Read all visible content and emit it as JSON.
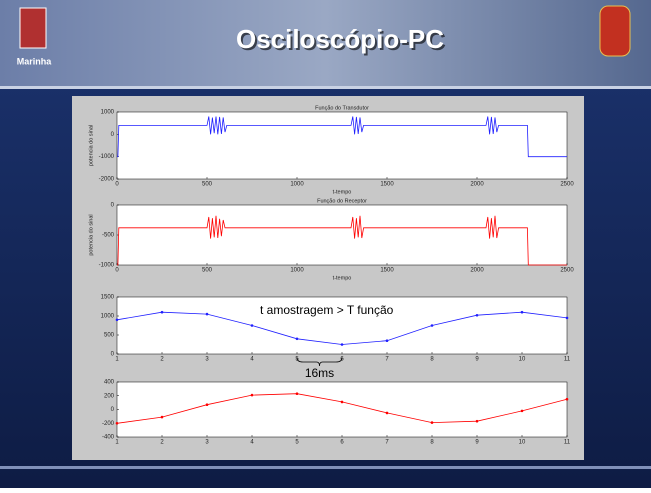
{
  "slide": {
    "title": "Osciloscópio-PC",
    "logo_text": "Marinha"
  },
  "chart_data": [
    {
      "type": "line",
      "title": "Função do Transdutor",
      "ylabel": "potencia do sinal",
      "xlabel": "t-tempo",
      "color": "#2020ff",
      "markers": false,
      "xlim": [
        0,
        2500
      ],
      "ylim": [
        -2000,
        1000
      ],
      "xticks": [
        0,
        500,
        1000,
        1500,
        2000,
        2500
      ],
      "yticks": [
        -2000,
        -1000,
        0,
        1000
      ],
      "x": [
        0,
        5,
        10,
        500,
        510,
        520,
        530,
        540,
        550,
        560,
        570,
        580,
        590,
        600,
        610,
        1300,
        1310,
        1320,
        1330,
        1340,
        1350,
        1360,
        1370,
        2050,
        2060,
        2070,
        2080,
        2090,
        2100,
        2110,
        2120,
        2280,
        2285,
        2500
      ],
      "y": [
        -1000,
        -1000,
        400,
        400,
        800,
        0,
        750,
        50,
        800,
        0,
        780,
        20,
        760,
        100,
        400,
        400,
        800,
        0,
        780,
        20,
        760,
        100,
        400,
        400,
        800,
        0,
        780,
        20,
        760,
        100,
        400,
        400,
        -1000,
        -1000
      ]
    },
    {
      "type": "line",
      "title": "Função do Receptor",
      "ylabel": "potencia do sinal",
      "xlabel": "t-tempo",
      "color": "#ff0000",
      "markers": false,
      "xlim": [
        0,
        2500
      ],
      "ylim": [
        -1000,
        0
      ],
      "xticks": [
        0,
        500,
        1000,
        1500,
        2000,
        2500
      ],
      "yticks": [
        -1000,
        -500,
        0
      ],
      "x": [
        0,
        5,
        10,
        500,
        510,
        520,
        530,
        540,
        550,
        560,
        570,
        580,
        590,
        600,
        610,
        1300,
        1310,
        1320,
        1330,
        1340,
        1350,
        1360,
        1370,
        2050,
        2060,
        2070,
        2080,
        2090,
        2100,
        2110,
        2120,
        2280,
        2285,
        2500
      ],
      "y": [
        -1000,
        -1000,
        -380,
        -380,
        -200,
        -560,
        -220,
        -540,
        -180,
        -550,
        -230,
        -520,
        -250,
        -380,
        -380,
        -380,
        -200,
        -560,
        -220,
        -540,
        -180,
        -550,
        -380,
        -380,
        -200,
        -560,
        -220,
        -540,
        -180,
        -550,
        -380,
        -380,
        -1000,
        -1000
      ]
    },
    {
      "type": "line",
      "color": "#2020ff",
      "markers": true,
      "xlim": [
        1,
        11
      ],
      "ylim": [
        0,
        1500
      ],
      "xticks": [
        1,
        2,
        3,
        4,
        5,
        6,
        7,
        8,
        9,
        10,
        11
      ],
      "yticks": [
        0,
        500,
        1000,
        1500
      ],
      "x": [
        1,
        2,
        3,
        4,
        5,
        6,
        7,
        8,
        9,
        10,
        11
      ],
      "y": [
        900,
        1100,
        1050,
        750,
        400,
        250,
        350,
        750,
        1020,
        1100,
        950
      ],
      "annotations": [
        "t amostragem > T função",
        "16ms"
      ]
    },
    {
      "type": "line",
      "color": "#ff0000",
      "markers": true,
      "xlim": [
        1,
        11
      ],
      "ylim": [
        -400,
        400
      ],
      "xticks": [
        1,
        2,
        3,
        4,
        5,
        6,
        7,
        8,
        9,
        10,
        11
      ],
      "yticks": [
        -400,
        -200,
        0,
        200,
        400
      ],
      "x": [
        1,
        2,
        3,
        4,
        5,
        6,
        7,
        8,
        9,
        10,
        11
      ],
      "y": [
        -200,
        -110,
        70,
        210,
        230,
        110,
        -50,
        -190,
        -170,
        -20,
        150
      ]
    }
  ]
}
